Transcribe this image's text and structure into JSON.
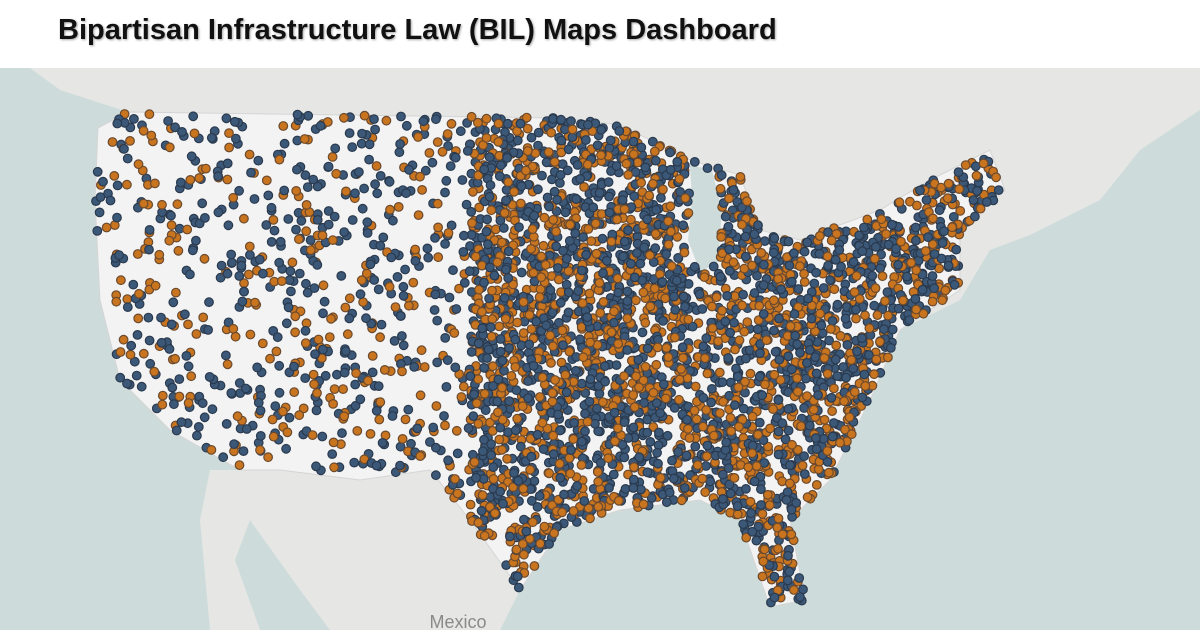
{
  "header": {
    "title": "Bipartisan Infrastructure Law (BIL) Maps Dashboard"
  },
  "map": {
    "labels": {
      "country": "Mexico"
    }
  }
}
